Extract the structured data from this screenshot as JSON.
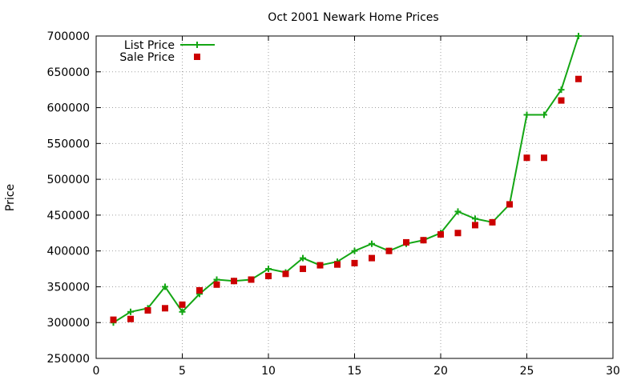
{
  "chart_data": {
    "type": "line",
    "title": "Oct 2001 Newark Home Prices",
    "xlabel": "",
    "ylabel": "Price",
    "xlim": [
      0,
      30
    ],
    "ylim": [
      250000,
      700000
    ],
    "xticks": [
      0,
      5,
      10,
      15,
      20,
      25,
      30
    ],
    "yticks": [
      250000,
      300000,
      350000,
      400000,
      450000,
      500000,
      550000,
      600000,
      650000,
      700000
    ],
    "grid": true,
    "legend_position": "top-left",
    "series": [
      {
        "name": "List Price",
        "style": "line-points",
        "marker": "plus",
        "color": "#14a614",
        "x": [
          1,
          2,
          3,
          4,
          5,
          6,
          7,
          8,
          9,
          10,
          11,
          12,
          13,
          14,
          15,
          16,
          17,
          18,
          19,
          20,
          21,
          22,
          23,
          24,
          25,
          26,
          27,
          28
        ],
        "y": [
          300000,
          315000,
          320000,
          350000,
          315000,
          340000,
          360000,
          358000,
          360000,
          375000,
          370000,
          390000,
          380000,
          385000,
          400000,
          410000,
          400000,
          410000,
          415000,
          425000,
          455000,
          445000,
          440000,
          465000,
          590000,
          590000,
          625000,
          700000
        ]
      },
      {
        "name": "Sale Price",
        "style": "points",
        "marker": "square",
        "color": "#cc0000",
        "x": [
          1,
          2,
          3,
          4,
          5,
          6,
          7,
          8,
          9,
          10,
          11,
          12,
          13,
          14,
          15,
          16,
          17,
          18,
          19,
          20,
          21,
          22,
          23,
          24,
          25,
          26,
          27,
          28
        ],
        "y": [
          304000,
          305000,
          317000,
          320000,
          325000,
          345000,
          353000,
          358000,
          360000,
          365000,
          368000,
          375000,
          380000,
          381000,
          383000,
          390000,
          400000,
          412000,
          415000,
          423000,
          425000,
          436000,
          440000,
          465000,
          530000,
          530000,
          610000,
          640000
        ]
      }
    ]
  }
}
